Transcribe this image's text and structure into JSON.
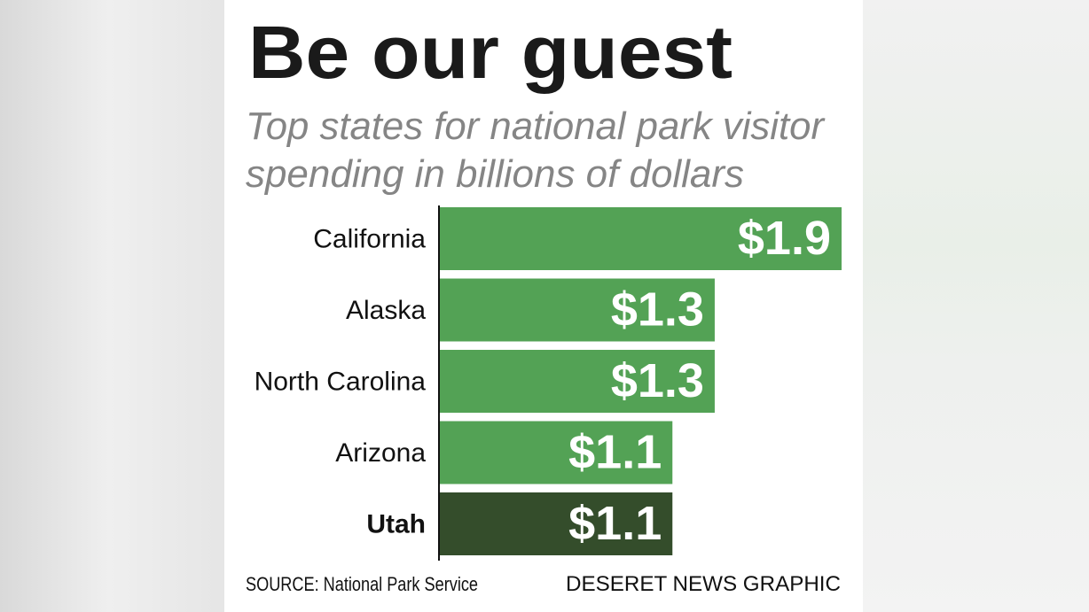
{
  "chart_data": {
    "type": "bar",
    "orientation": "horizontal",
    "title": "Be our guest",
    "subtitle": [
      "Top states for national park visitor",
      "spending in billions of dollars"
    ],
    "categories": [
      "California",
      "Alaska",
      "North Carolina",
      "Arizona",
      "Utah"
    ],
    "values": [
      1.9,
      1.3,
      1.3,
      1.1,
      1.1
    ],
    "value_labels": [
      "$1.9",
      "$1.3",
      "$1.3",
      "$1.1",
      "$1.1"
    ],
    "colors": [
      "#53a255",
      "#53a255",
      "#53a255",
      "#53a255",
      "#344d2b"
    ],
    "highlight_index": 4,
    "source": "SOURCE: National Park Service",
    "credit": "DESERET NEWS GRAPHIC"
  }
}
